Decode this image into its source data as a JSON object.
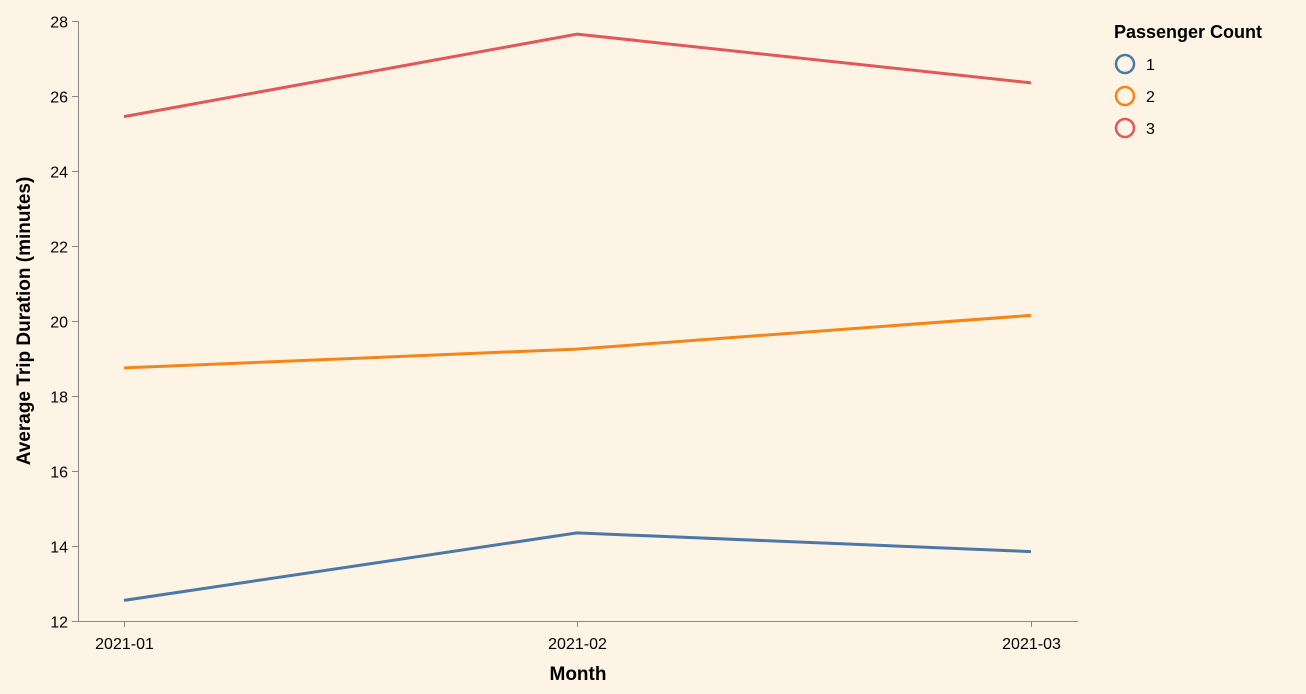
{
  "chart_data": {
    "type": "line",
    "x": [
      "2021-01",
      "2021-02",
      "2021-03"
    ],
    "xlabel": "Month",
    "ylabel": "Average Trip Duration (minutes)",
    "ylim": [
      12,
      28
    ],
    "yticks": [
      12,
      14,
      16,
      18,
      20,
      22,
      24,
      26,
      28
    ],
    "grid": false,
    "legend": {
      "title": "Passenger Count",
      "placement": "top-right"
    },
    "series": [
      {
        "name": "1",
        "color": "#4c78a8",
        "values": [
          12.55,
          14.35,
          13.85
        ]
      },
      {
        "name": "2",
        "color": "#f58518",
        "values": [
          18.75,
          19.25,
          20.15
        ]
      },
      {
        "name": "3",
        "color": "#e45756",
        "values": [
          25.45,
          27.65,
          26.35
        ]
      }
    ]
  }
}
